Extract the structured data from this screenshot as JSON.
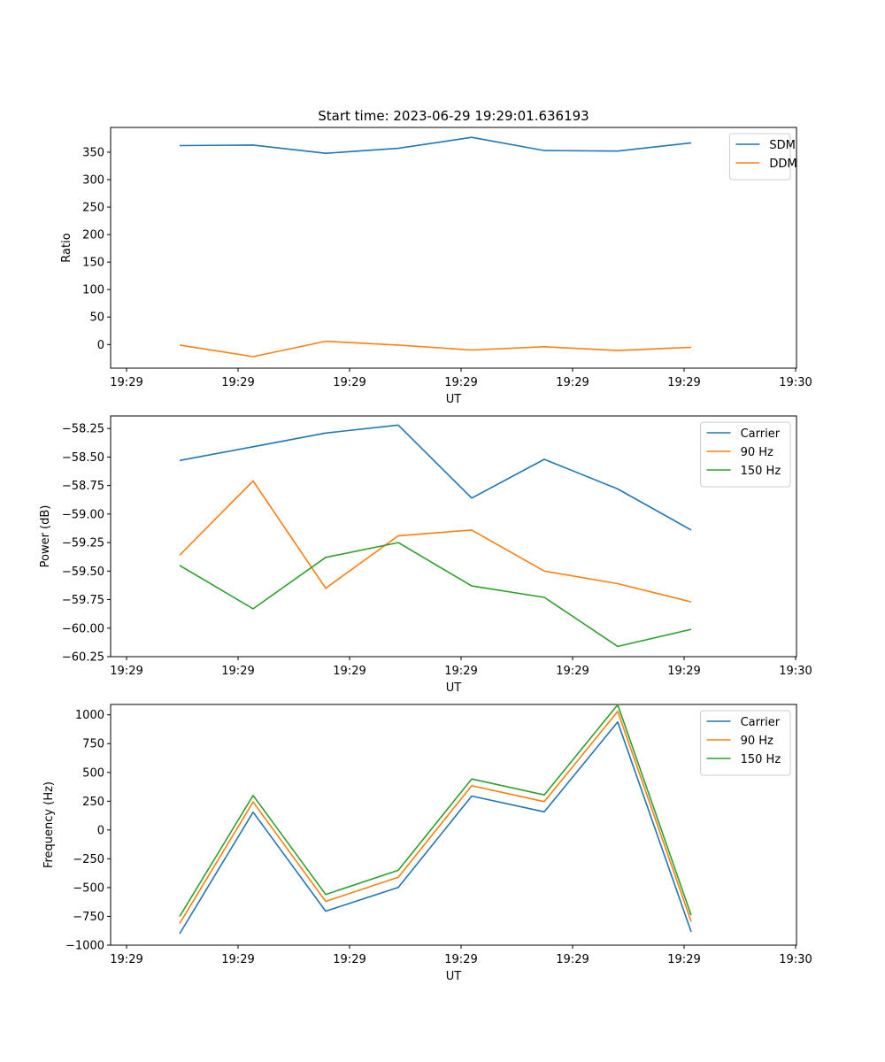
{
  "figure": {
    "title": "Start time: 2023-06-29 19:29:01.636193"
  },
  "chart_data": [
    {
      "type": "line",
      "xlabel": "UT",
      "ylabel": "Ratio",
      "x_tick_labels": [
        "19:29",
        "19:29",
        "19:29",
        "19:29",
        "19:29",
        "19:29",
        "19:30"
      ],
      "y_ticks": [
        0,
        50,
        100,
        150,
        200,
        250,
        300,
        350
      ],
      "ylim": [
        -43,
        395
      ],
      "legend_location": "upper right",
      "series": [
        {
          "name": "SDM",
          "color": "#1f77b4",
          "values": [
            362,
            363,
            348,
            357,
            377,
            353,
            352,
            367
          ]
        },
        {
          "name": "DDM",
          "color": "#ff7f0e",
          "values": [
            -1,
            -22,
            6,
            -1,
            -10,
            -4,
            -11,
            -5
          ]
        }
      ]
    },
    {
      "type": "line",
      "xlabel": "UT",
      "ylabel": "Power (dB)",
      "x_tick_labels": [
        "19:29",
        "19:29",
        "19:29",
        "19:29",
        "19:29",
        "19:29",
        "19:30"
      ],
      "y_ticks": [
        -58.25,
        -58.5,
        -58.75,
        -59.0,
        -59.25,
        -59.5,
        -59.75,
        -60.0,
        -60.25
      ],
      "y_tick_labels": [
        "−58.25",
        "−58.50",
        "−58.75",
        "−59.00",
        "−59.25",
        "−59.50",
        "−59.75",
        "−60.00",
        "−60.25"
      ],
      "ylim": [
        -60.25,
        -58.14
      ],
      "legend_location": "upper right",
      "series": [
        {
          "name": "Carrier",
          "color": "#1f77b4",
          "values": [
            -58.53,
            -58.41,
            -58.29,
            -58.22,
            -58.86,
            -58.52,
            -58.78,
            -59.14
          ]
        },
        {
          "name": "90 Hz",
          "color": "#ff7f0e",
          "values": [
            -59.36,
            -58.71,
            -59.65,
            -59.19,
            -59.14,
            -59.5,
            -59.61,
            -59.77
          ]
        },
        {
          "name": "150 Hz",
          "color": "#2ca02c",
          "values": [
            -59.45,
            -59.83,
            -59.38,
            -59.25,
            -59.63,
            -59.73,
            -60.16,
            -60.01
          ]
        }
      ]
    },
    {
      "type": "line",
      "xlabel": "UT",
      "ylabel": "Frequency (Hz)",
      "x_tick_labels": [
        "19:29",
        "19:29",
        "19:29",
        "19:29",
        "19:29",
        "19:29",
        "19:30"
      ],
      "y_ticks": [
        1000,
        750,
        500,
        250,
        0,
        -250,
        -500,
        -750,
        -1000
      ],
      "y_tick_labels": [
        "1000",
        "750",
        "500",
        "250",
        "0",
        "−250",
        "−500",
        "−750",
        "−1000"
      ],
      "ylim": [
        -1000,
        1090
      ],
      "legend_location": "upper right",
      "series": [
        {
          "name": "Carrier",
          "color": "#1f77b4",
          "values": [
            -900,
            155,
            -705,
            -498,
            295,
            158,
            938,
            -885
          ]
        },
        {
          "name": "90 Hz",
          "color": "#ff7f0e",
          "values": [
            -812,
            243,
            -620,
            -410,
            385,
            246,
            1030,
            -795
          ]
        },
        {
          "name": "150 Hz",
          "color": "#2ca02c",
          "values": [
            -750,
            300,
            -560,
            -350,
            443,
            305,
            1088,
            -740
          ]
        }
      ]
    }
  ]
}
